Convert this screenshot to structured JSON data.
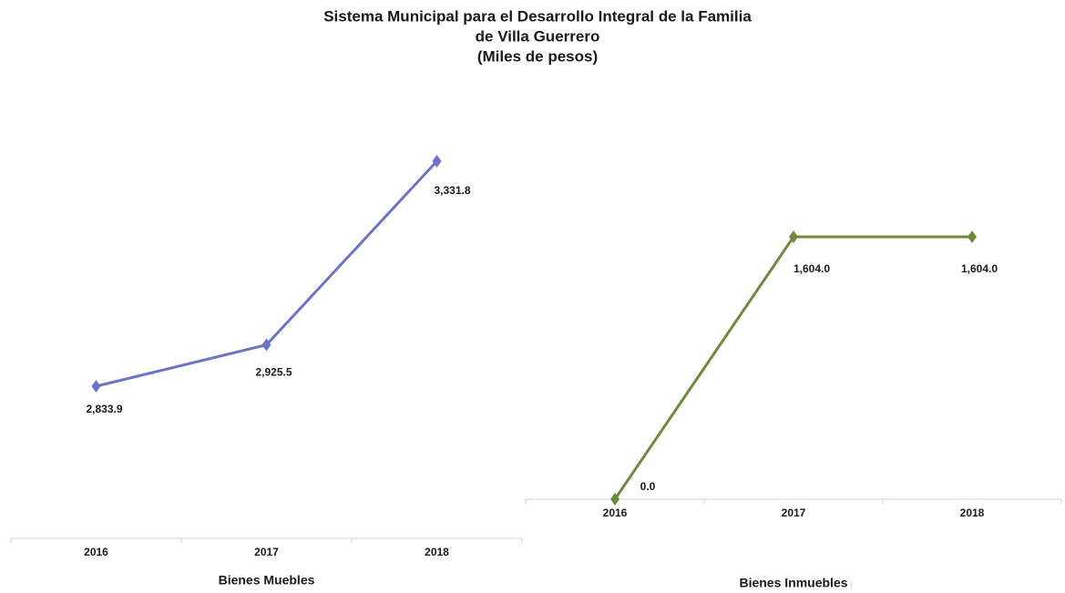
{
  "title": [
    "Sistema Municipal para el Desarrollo Integral de la Familia",
    "de Villa Guerrero",
    "(Miles de pesos)"
  ],
  "chart_data": [
    {
      "type": "line",
      "x_label": "Bienes Muebles",
      "categories": [
        "2016",
        "2017",
        "2018"
      ],
      "values": [
        2833.9,
        2925.5,
        3331.8
      ],
      "value_labels": [
        "2,833.9",
        "2,925.5",
        "3,331.8"
      ],
      "color": "#6b74c6"
    },
    {
      "type": "line",
      "x_label": "Bienes Inmuebles",
      "categories": [
        "2016",
        "2017",
        "2018"
      ],
      "values": [
        0,
        1604,
        1604
      ],
      "value_labels": [
        "0.0",
        "1,604.0",
        "1,604.0"
      ],
      "color": "#6f8a3c"
    }
  ]
}
